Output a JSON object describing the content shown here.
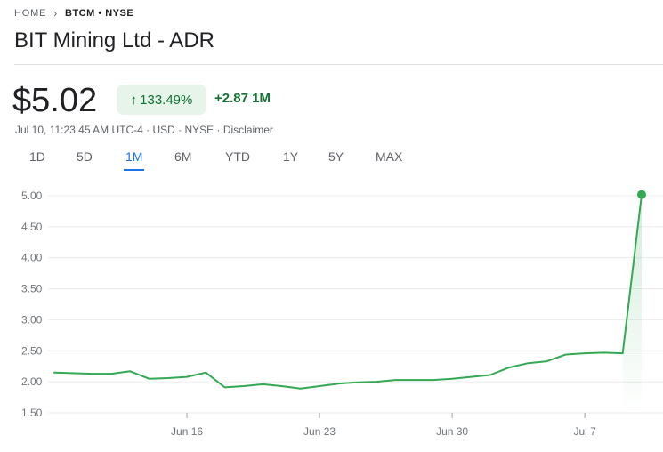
{
  "breadcrumb": {
    "home": "HOME",
    "ticker": "BTCM • NYSE"
  },
  "header": {
    "title": "BIT Mining Ltd - ADR"
  },
  "quote": {
    "price": "$5.02",
    "change_pct": "133.49%",
    "change_abs": "+2.87 1M",
    "meta": "Jul 10, 11:23:45 AM UTC-4 · USD · NYSE · Disclaimer"
  },
  "ranges": [
    "1D",
    "5D",
    "1M",
    "6M",
    "YTD",
    "1Y",
    "5Y",
    "MAX"
  ],
  "active_range": "1M",
  "icons": {
    "breadcrumb_separator": "chevron-right-icon",
    "change_direction": "arrow-up-icon"
  },
  "colors": {
    "positive": "#137333",
    "positive_bg": "#e6f4ea",
    "line": "#34a853",
    "accent": "#1a73e8"
  },
  "chart_data": {
    "type": "line",
    "xlabel": "",
    "ylabel": "",
    "y_ticks": [
      "5.00",
      "4.50",
      "4.00",
      "3.50",
      "3.00",
      "2.50",
      "2.00",
      "1.50"
    ],
    "ylim": [
      1.5,
      5.0
    ],
    "x_ticks": [
      {
        "label": "Jun 16",
        "day": 16
      },
      {
        "label": "Jun 23",
        "day": 23
      },
      {
        "label": "Jun 30",
        "day": 30
      },
      {
        "label": "Jul 7",
        "day": 37
      }
    ],
    "x_range_days": [
      9,
      40
    ],
    "series": [
      {
        "x": [
          9,
          11,
          12,
          13,
          14,
          15,
          16,
          17,
          18,
          19,
          20,
          21,
          22,
          23,
          24,
          25,
          26,
          27,
          28,
          29,
          30,
          31,
          32,
          33,
          34,
          35,
          36,
          37,
          38,
          39,
          40
        ],
        "y": [
          2.15,
          2.13,
          2.13,
          2.17,
          2.05,
          2.06,
          2.08,
          2.15,
          1.91,
          1.93,
          1.96,
          1.93,
          1.89,
          1.93,
          1.97,
          1.99,
          2.0,
          2.03,
          2.03,
          2.03,
          2.05,
          2.08,
          2.11,
          2.23,
          2.3,
          2.33,
          2.44,
          2.46,
          2.47,
          2.46,
          5.02
        ]
      }
    ]
  }
}
